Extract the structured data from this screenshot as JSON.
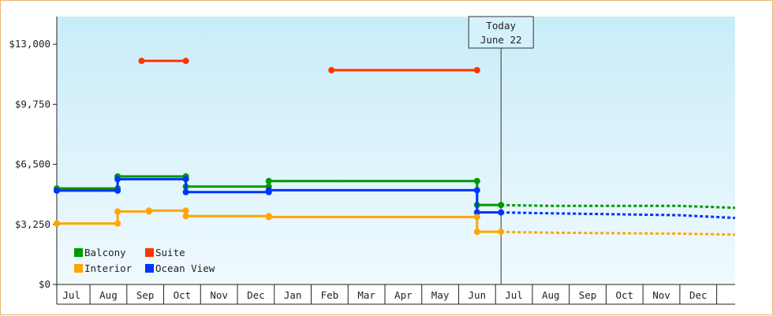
{
  "chart_data": {
    "type": "line",
    "subtype": "step",
    "ylim": [
      0,
      14500
    ],
    "yticks": [
      {
        "value": 0,
        "label": "$0"
      },
      {
        "value": 3250,
        "label": "$3,250"
      },
      {
        "value": 6500,
        "label": "$6,500"
      },
      {
        "value": 9750,
        "label": "$9,750"
      },
      {
        "value": 13000,
        "label": "$13,000"
      }
    ],
    "months": [
      "Jul",
      "Aug",
      "Sep",
      "Oct",
      "Nov",
      "Dec",
      "Jan",
      "Feb",
      "Mar",
      "Apr",
      "May",
      "Jun",
      "Jul",
      "Aug",
      "Sep",
      "Oct",
      "Nov",
      "Dec"
    ],
    "x_domain": [
      -0.4,
      18.0
    ],
    "today": {
      "x": 11.65,
      "line1": "Today",
      "line2": "June 22"
    },
    "legend": [
      {
        "name": "Balcony",
        "color": "#009900"
      },
      {
        "name": "Suite",
        "color": "#ff3300"
      },
      {
        "name": "Interior",
        "color": "#ffa500"
      },
      {
        "name": "Ocean View",
        "color": "#0033ff"
      }
    ],
    "series": [
      {
        "name": "Balcony",
        "color": "#009900",
        "segments": [
          {
            "x1": -0.4,
            "x2": 1.25,
            "y": 5200
          },
          {
            "x1": 1.25,
            "x2": 3.1,
            "y": 5850
          },
          {
            "x1": 3.1,
            "x2": 5.35,
            "y": 5300
          },
          {
            "x1": 5.35,
            "x2": 11.0,
            "y": 5600
          },
          {
            "x1": 11.0,
            "x2": 11.65,
            "y": 4300
          }
        ],
        "forecast": [
          [
            11.65,
            4300
          ],
          [
            13.0,
            4250
          ],
          [
            16.5,
            4250
          ],
          [
            18.0,
            4150
          ]
        ]
      },
      {
        "name": "Ocean View",
        "color": "#0033ff",
        "segments": [
          {
            "x1": -0.4,
            "x2": 1.25,
            "y": 5080
          },
          {
            "x1": 1.25,
            "x2": 3.1,
            "y": 5700
          },
          {
            "x1": 3.1,
            "x2": 5.35,
            "y": 5000
          },
          {
            "x1": 5.35,
            "x2": 11.0,
            "y": 5100
          },
          {
            "x1": 11.0,
            "x2": 11.65,
            "y": 3900
          }
        ],
        "forecast": [
          [
            11.65,
            3900
          ],
          [
            13.0,
            3850
          ],
          [
            16.5,
            3750
          ],
          [
            18.0,
            3600
          ]
        ]
      },
      {
        "name": "Interior",
        "color": "#ffa500",
        "segments": [
          {
            "x1": -0.4,
            "x2": 1.25,
            "y": 3300
          },
          {
            "x1": 1.25,
            "x2": 2.1,
            "y": 3950
          },
          {
            "x1": 2.1,
            "x2": 3.1,
            "y": 4000
          },
          {
            "x1": 3.1,
            "x2": 5.35,
            "y": 3700
          },
          {
            "x1": 5.35,
            "x2": 11.0,
            "y": 3650
          },
          {
            "x1": 11.0,
            "x2": 11.65,
            "y": 2850
          }
        ],
        "forecast": [
          [
            11.65,
            2850
          ],
          [
            13.0,
            2800
          ],
          [
            16.5,
            2750
          ],
          [
            18.0,
            2700
          ]
        ]
      },
      {
        "name": "Suite",
        "color": "#ff3300",
        "segments": [
          {
            "x1": 1.9,
            "x2": 3.1,
            "y": 12100
          },
          {
            "x1": 7.05,
            "x2": 11.0,
            "y": 11600
          }
        ],
        "forecast": []
      }
    ]
  }
}
